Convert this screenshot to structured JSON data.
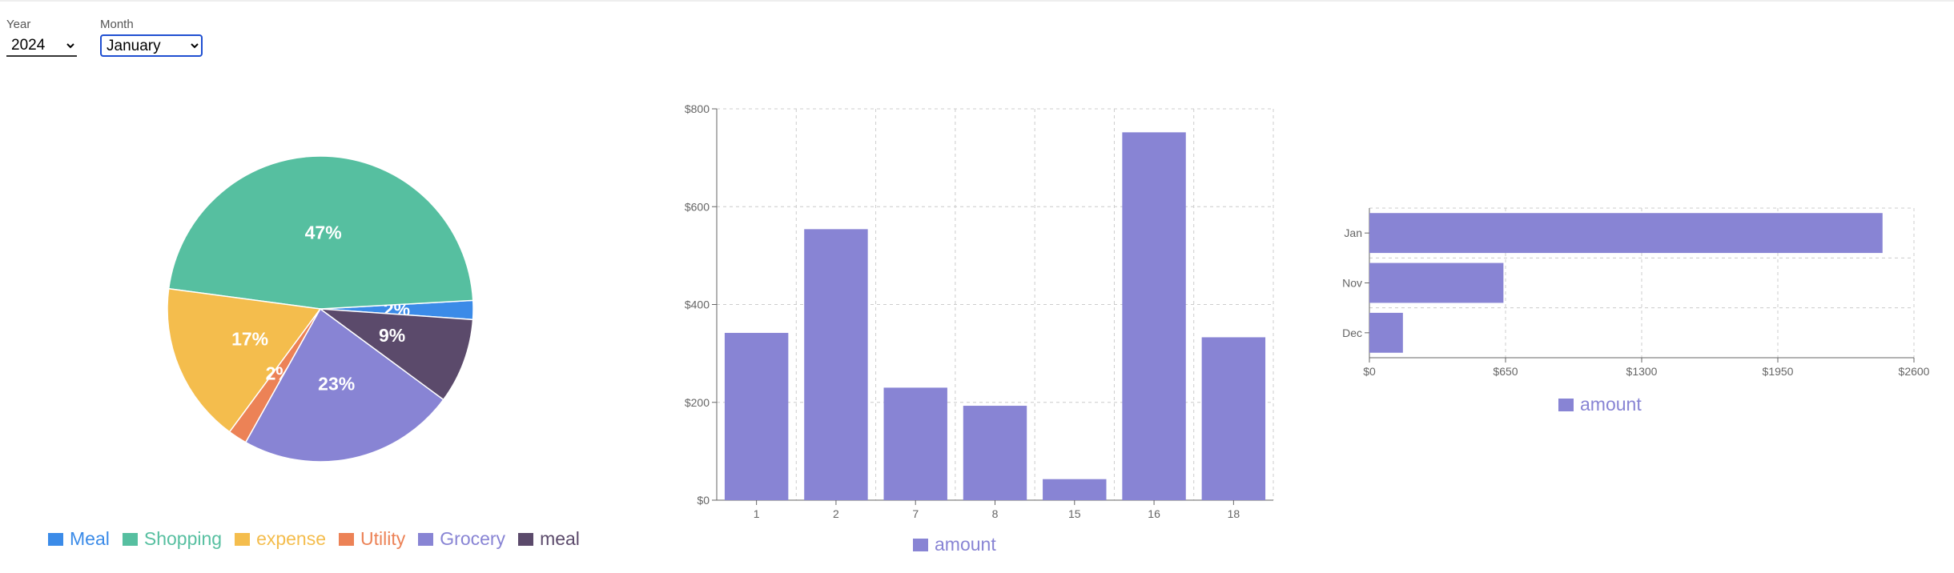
{
  "filters": {
    "year": {
      "label": "Year",
      "options": [
        "2024"
      ],
      "selected": "2024"
    },
    "month": {
      "label": "Month",
      "options": [
        "January"
      ],
      "selected": "January"
    }
  },
  "chart_data": [
    {
      "type": "pie",
      "slices": [
        {
          "label": "Meal",
          "value": 2,
          "display": "2%",
          "color": "#3b8be8"
        },
        {
          "label": "Shopping",
          "value": 47,
          "display": "47%",
          "color": "#56bfa0"
        },
        {
          "label": "expense",
          "value": 17,
          "display": "17%",
          "color": "#f4bd4d"
        },
        {
          "label": "Utility",
          "value": 2,
          "display": "2%",
          "color": "#ec8256"
        },
        {
          "label": "Grocery",
          "value": 23,
          "display": "23%",
          "color": "#8884d4"
        },
        {
          "label": "meal",
          "value": 9,
          "display": "9%",
          "color": "#5b4a6b"
        }
      ],
      "legend_position": "bottom"
    },
    {
      "type": "bar",
      "categories": [
        "1",
        "2",
        "7",
        "8",
        "15",
        "16",
        "18"
      ],
      "series": [
        {
          "name": "amount",
          "values": [
            342,
            554,
            230,
            193,
            43,
            752,
            333
          ],
          "color": "#8884d4"
        }
      ],
      "ylim": [
        0,
        800
      ],
      "yticks": [
        0,
        200,
        400,
        600,
        800
      ],
      "ytick_labels": [
        "$0",
        "$200",
        "$400",
        "$600",
        "$800"
      ],
      "grid": true,
      "legend_position": "bottom"
    },
    {
      "type": "bar",
      "orientation": "horizontal",
      "categories": [
        "Jan",
        "Nov",
        "Dec"
      ],
      "series": [
        {
          "name": "amount",
          "values": [
            2450,
            640,
            160
          ],
          "color": "#8884d4"
        }
      ],
      "xlim": [
        0,
        2600
      ],
      "xticks": [
        0,
        650,
        1300,
        1950,
        2600
      ],
      "xtick_labels": [
        "$0",
        "$650",
        "$1300",
        "$1950",
        "$2600"
      ],
      "grid": true,
      "legend_position": "bottom"
    }
  ]
}
